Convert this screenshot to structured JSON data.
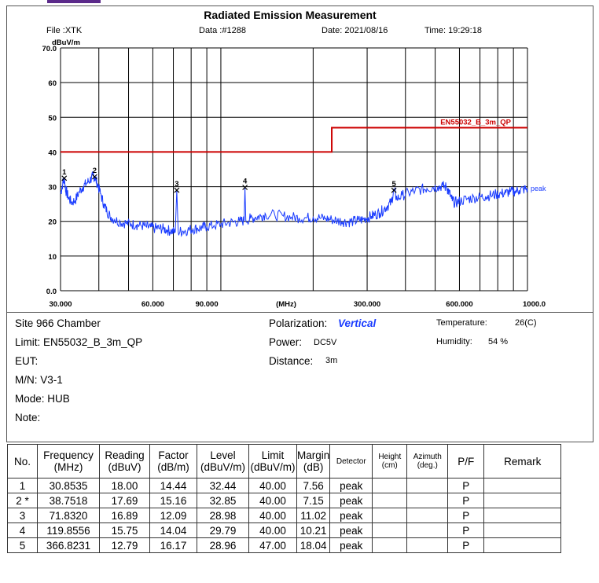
{
  "header": {
    "title": "Radiated Emission Measurement",
    "file": "File :XTK",
    "data_no": "Data :#1288",
    "date": "Date: 2021/08/16",
    "time": "Time: 19:29:18"
  },
  "chart_data": {
    "type": "line",
    "xscale": "log",
    "xlim": [
      30,
      1000
    ],
    "ylim": [
      0,
      70
    ],
    "ylabel": "dBuV/m",
    "xlabel": "(MHz)",
    "yticks": [
      "70.0",
      "60",
      "50",
      "40",
      "30",
      "20",
      "10",
      "0.0"
    ],
    "xticks": [
      {
        "v": 30,
        "label": "30.000"
      },
      {
        "v": 60,
        "label": "60.000"
      },
      {
        "v": 90,
        "label": "90.000"
      },
      {
        "v": 300,
        "label": "300.000"
      },
      {
        "v": 600,
        "label": "600.000"
      },
      {
        "v": 1000,
        "label": "1000.0"
      }
    ],
    "grid": true,
    "limit_label": "EN55032_B_3m_QP",
    "limit": [
      {
        "x": 30,
        "y": 40
      },
      {
        "x": 230,
        "y": 40
      },
      {
        "x": 230,
        "y": 47
      },
      {
        "x": 1000,
        "y": 47
      }
    ],
    "trace_label": "peak",
    "trace": [
      [
        30,
        28
      ],
      [
        30.5,
        31
      ],
      [
        30.85,
        32.4
      ],
      [
        31.2,
        29
      ],
      [
        31.8,
        27
      ],
      [
        32.5,
        25.5
      ],
      [
        33.5,
        26
      ],
      [
        34.5,
        28.5
      ],
      [
        35.5,
        30
      ],
      [
        36.5,
        31
      ],
      [
        37.5,
        32
      ],
      [
        38.3,
        33
      ],
      [
        38.75,
        32.8
      ],
      [
        39.5,
        31
      ],
      [
        40.5,
        28
      ],
      [
        41.5,
        25
      ],
      [
        42.5,
        23
      ],
      [
        43.5,
        21.5
      ],
      [
        45,
        20.5
      ],
      [
        47,
        19.8
      ],
      [
        49,
        19.5
      ],
      [
        51,
        19.2
      ],
      [
        53,
        19
      ],
      [
        55,
        18.8
      ],
      [
        57,
        18.5
      ],
      [
        59,
        18.3
      ],
      [
        61,
        18
      ],
      [
        63,
        18
      ],
      [
        65,
        17.8
      ],
      [
        67,
        17.5
      ],
      [
        69,
        17.2
      ],
      [
        71,
        16.8
      ],
      [
        71.83,
        29
      ],
      [
        72.6,
        17
      ],
      [
        75,
        17.2
      ],
      [
        78,
        17.5
      ],
      [
        81,
        17.8
      ],
      [
        84,
        18
      ],
      [
        87,
        18.2
      ],
      [
        90,
        18.5
      ],
      [
        95,
        18.8
      ],
      [
        100,
        19.2
      ],
      [
        105,
        19.5
      ],
      [
        110,
        19.8
      ],
      [
        115,
        20
      ],
      [
        119.1,
        20.2
      ],
      [
        119.86,
        29.8
      ],
      [
        120.6,
        20.3
      ],
      [
        125,
        20.8
      ],
      [
        130,
        21.2
      ],
      [
        135,
        21.5
      ],
      [
        140,
        22
      ],
      [
        150,
        21.8
      ],
      [
        160,
        21.5
      ],
      [
        170,
        21.2
      ],
      [
        180,
        21
      ],
      [
        190,
        21
      ],
      [
        200,
        21.2
      ],
      [
        210,
        21
      ],
      [
        220,
        20.8
      ],
      [
        230,
        20.5
      ],
      [
        240,
        20.2
      ],
      [
        250,
        20
      ],
      [
        260,
        19.8
      ],
      [
        270,
        20
      ],
      [
        280,
        20.3
      ],
      [
        290,
        20.5
      ],
      [
        300,
        21
      ],
      [
        310,
        21.5
      ],
      [
        320,
        22
      ],
      [
        330,
        22.5
      ],
      [
        340,
        23.5
      ],
      [
        350,
        24.5
      ],
      [
        360,
        25.5
      ],
      [
        366.8,
        29
      ],
      [
        375,
        26.5
      ],
      [
        390,
        27.5
      ],
      [
        410,
        28.2
      ],
      [
        430,
        28.8
      ],
      [
        450,
        29.2
      ],
      [
        470,
        29.5
      ],
      [
        490,
        29.8
      ],
      [
        510,
        30
      ],
      [
        530,
        30.2
      ],
      [
        545,
        29.8
      ],
      [
        555,
        28.5
      ],
      [
        565,
        26.5
      ],
      [
        575,
        25.5
      ],
      [
        590,
        25.5
      ],
      [
        610,
        26
      ],
      [
        640,
        26.5
      ],
      [
        670,
        26.8
      ],
      [
        700,
        27
      ],
      [
        730,
        27.2
      ],
      [
        760,
        27.5
      ],
      [
        790,
        27.8
      ],
      [
        820,
        28
      ],
      [
        850,
        28.2
      ],
      [
        880,
        28.5
      ],
      [
        910,
        28.7
      ],
      [
        940,
        29
      ],
      [
        970,
        29.2
      ],
      [
        1000,
        29.4
      ]
    ],
    "markers": [
      {
        "id": "1",
        "x": 30.8535,
        "y": 32.44
      },
      {
        "id": "2",
        "x": 38.7518,
        "y": 32.85
      },
      {
        "id": "3",
        "x": 71.832,
        "y": 28.98
      },
      {
        "id": "4",
        "x": 119.8556,
        "y": 29.79
      },
      {
        "id": "5",
        "x": 366.8231,
        "y": 28.96
      }
    ]
  },
  "info": {
    "site": "Site  966 Chamber",
    "limit": "Limit:  EN55032_B_3m_QP",
    "eut": "EUT:",
    "mn": "M/N:  V3-1",
    "mode": "Mode:  HUB",
    "note": "Note:",
    "polarization_label": "Polarization:",
    "polarization_value": "Vertical",
    "power_label": "Power:",
    "power_value": "DC5V",
    "distance_label": "Distance:",
    "distance_value": "3m",
    "temperature_label": "Temperature:",
    "temperature_value": "26(C)",
    "humidity_label": "Humidity:",
    "humidity_value": "54 %"
  },
  "table": {
    "headers": [
      "No.",
      "Frequency\n(MHz)",
      "Reading\n(dBuV)",
      "Factor\n(dB/m)",
      "Level\n(dBuV/m)",
      "Limit\n(dBuV/m)",
      "Margin\n(dB)",
      "Detector",
      "Height\n(cm)",
      "Azimuth\n(deg.)",
      "P/F",
      "Remark"
    ],
    "rows": [
      [
        "1",
        "30.8535",
        "18.00",
        "14.44",
        "32.44",
        "40.00",
        "7.56",
        "peak",
        "",
        "",
        "P",
        ""
      ],
      [
        "2  *",
        "38.7518",
        "17.69",
        "15.16",
        "32.85",
        "40.00",
        "7.15",
        "peak",
        "",
        "",
        "P",
        ""
      ],
      [
        "3",
        "71.8320",
        "16.89",
        "12.09",
        "28.98",
        "40.00",
        "11.02",
        "peak",
        "",
        "",
        "P",
        ""
      ],
      [
        "4",
        "119.8556",
        "15.75",
        "14.04",
        "29.79",
        "40.00",
        "10.21",
        "peak",
        "",
        "",
        "P",
        ""
      ],
      [
        "5",
        "366.8231",
        "12.79",
        "16.17",
        "28.96",
        "47.00",
        "18.04",
        "peak",
        "",
        "",
        "P",
        ""
      ]
    ]
  },
  "colors": {
    "trace": "#1a3cff",
    "limit": "#cc0000",
    "polarization": "#1a3cff"
  }
}
